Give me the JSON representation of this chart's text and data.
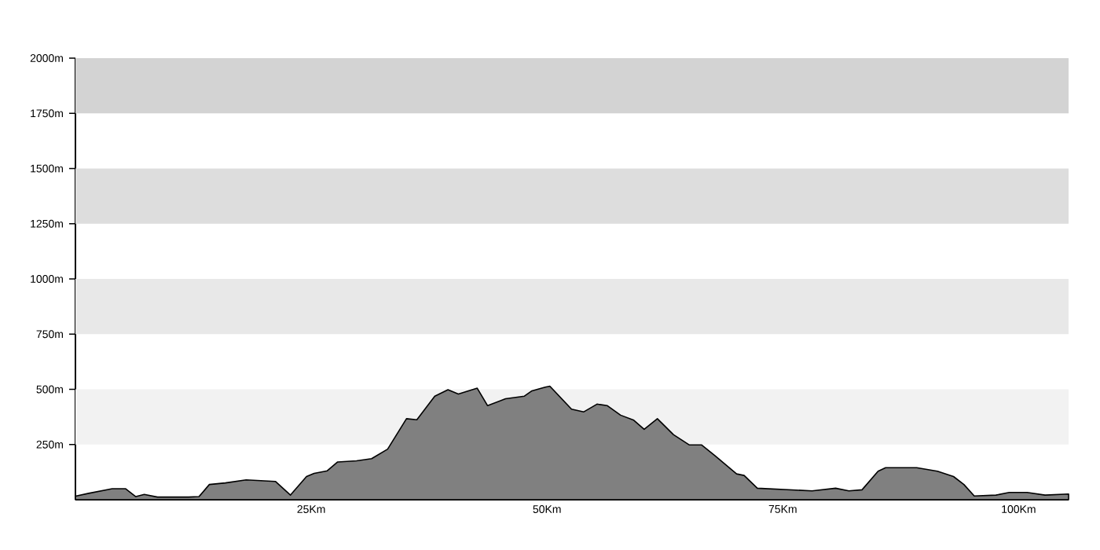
{
  "chart_data": {
    "type": "area",
    "x": [
      0,
      1.4,
      3.9,
      5.3,
      6.4,
      7.3,
      8.7,
      12,
      13.1,
      14.2,
      15.9,
      18.1,
      21.2,
      22.8,
      24.5,
      25.3,
      26.7,
      27.8,
      29.8,
      31.4,
      33.1,
      35.1,
      36.2,
      38.1,
      39.5,
      40.6,
      42.6,
      43.7,
      45.6,
      47.6,
      48.4,
      49.8,
      50.3,
      52.6,
      53.9,
      55.3,
      56.4,
      57.8,
      59.2,
      60.3,
      61.7,
      63.4,
      65.1,
      66.4,
      67.8,
      70.1,
      70.9,
      72.3,
      78.1,
      80.6,
      82,
      83.4,
      85.1,
      85.9,
      89.2,
      91.4,
      93.1,
      94.2,
      95.3,
      97.6,
      99,
      100.9,
      102.8,
      105.3
    ],
    "series": [
      {
        "color": "#808080",
        "values": [
          16,
          29,
          50,
          50,
          14,
          24,
          12,
          12,
          14,
          69,
          76,
          90,
          83,
          21,
          105,
          119,
          131,
          171,
          176,
          186,
          229,
          367,
          362,
          469,
          498,
          479,
          505,
          426,
          457,
          469,
          493,
          510,
          514,
          410,
          398,
          433,
          426,
          383,
          360,
          319,
          367,
          295,
          248,
          248,
          200,
          117,
          110,
          52,
          40,
          52,
          40,
          45,
          129,
          145,
          145,
          129,
          105,
          69,
          17,
          21,
          33,
          33,
          21,
          26
        ]
      }
    ],
    "xlim": [
      0,
      105.3
    ],
    "ylim": [
      0,
      2000
    ],
    "xticks": [
      {
        "value": 25,
        "label": "25Km"
      },
      {
        "value": 50,
        "label": "50Km"
      },
      {
        "value": 75,
        "label": "75Km"
      },
      {
        "value": 100,
        "label": "100Km"
      }
    ],
    "yticks": [
      {
        "value": 250,
        "label": "250m"
      },
      {
        "value": 500,
        "label": "500m"
      },
      {
        "value": 750,
        "label": "750m"
      },
      {
        "value": 1000,
        "label": "1000m"
      },
      {
        "value": 1250,
        "label": "1250m"
      },
      {
        "value": 1500,
        "label": "1500m"
      },
      {
        "value": 1750,
        "label": "1750m"
      },
      {
        "value": 2000,
        "label": "2000m"
      }
    ],
    "bands": [
      {
        "axis": "y",
        "from": 250,
        "to": 500,
        "color": "#f2f2f2"
      },
      {
        "axis": "y",
        "from": 750,
        "to": 1000,
        "color": "#e8e8e8"
      },
      {
        "axis": "y",
        "from": 1250,
        "to": 1500,
        "color": "#dddddd"
      },
      {
        "axis": "y",
        "from": 1750,
        "to": 2000,
        "color": "#d3d3d3"
      }
    ]
  }
}
